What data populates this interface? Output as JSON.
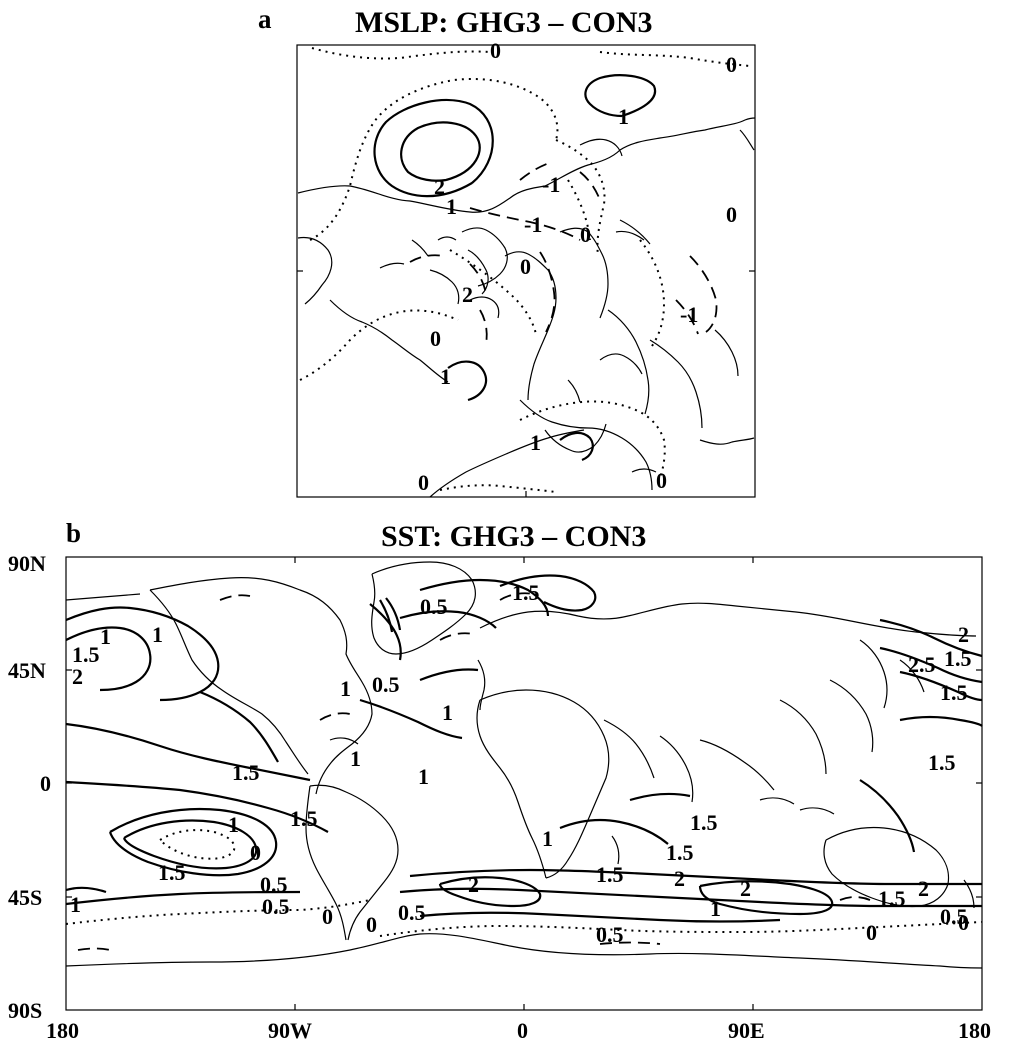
{
  "panel_a": {
    "letter": "a",
    "title": "MSLP: GHG3 – CON3",
    "contour_labels": [
      "0",
      "0",
      "1",
      "2",
      "1",
      "-1",
      "-1",
      "0",
      "0",
      "0",
      "2",
      "0",
      "-1",
      "1",
      "1",
      "0",
      "0"
    ]
  },
  "panel_b": {
    "letter": "b",
    "title": "SST: GHG3 – CON3",
    "lat_ticks": [
      "90N",
      "45N",
      "0",
      "45S",
      "90S"
    ],
    "lon_ticks": [
      "180",
      "90W",
      "0",
      "90E",
      "180"
    ],
    "contour_labels": [
      "1.5",
      "1",
      "1",
      "2",
      "0.5",
      "1.5",
      "1",
      "0.5",
      "1",
      "1.5",
      "1",
      "1",
      "1",
      "1.5",
      "0",
      "1.5",
      "0.5",
      "0.5",
      "1",
      "0",
      "0",
      "0.5",
      "2",
      "1.5",
      "1.5",
      "1.5",
      "2",
      "2",
      "1",
      "0.5",
      "0",
      "2",
      "2.5",
      "1.5",
      "1.5",
      "1.5",
      "1.5",
      "2",
      "0.5",
      "0",
      "1"
    ]
  }
}
